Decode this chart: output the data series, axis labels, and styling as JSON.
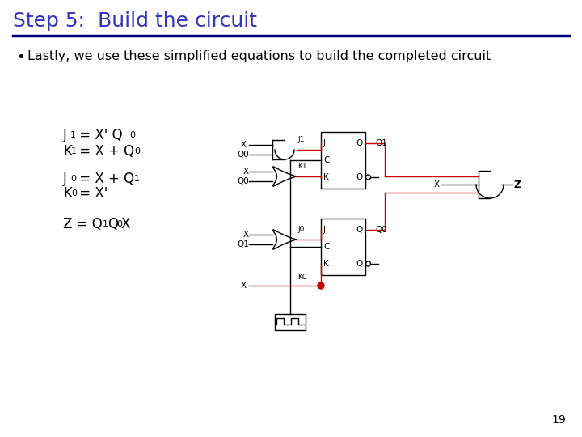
{
  "title": "Step 5:  Build the circuit",
  "title_color": "#3333bb",
  "title_fontsize": 18,
  "bullet_text": "Lastly, we use these simplified equations to build the completed circuit",
  "bullet_fontsize": 11.5,
  "background_color": "#ffffff",
  "page_number": "19",
  "line_color": "#000000",
  "red_color": "#cc0000",
  "underline_color": "#000080"
}
